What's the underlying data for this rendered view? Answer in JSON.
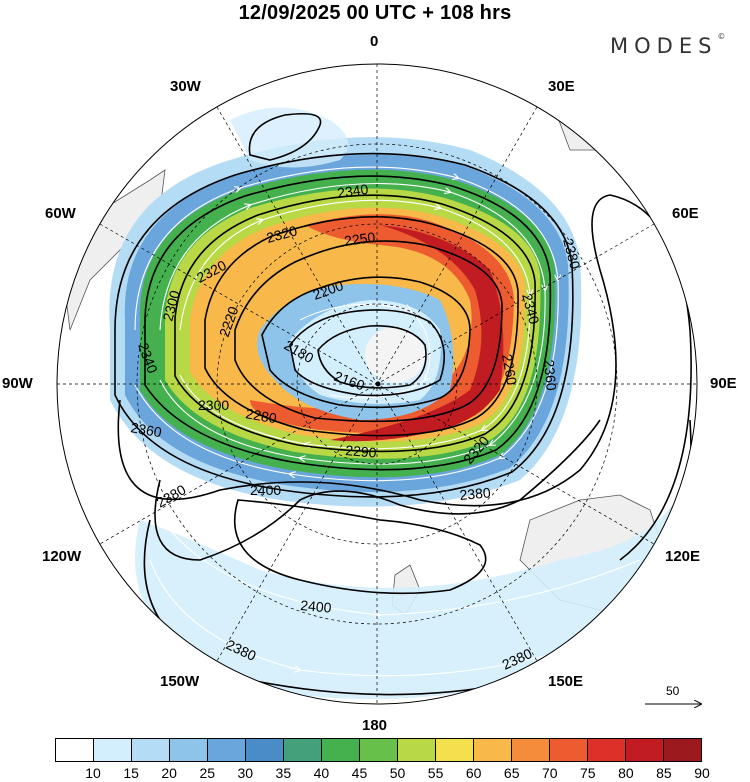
{
  "header": {
    "title": "12/09/2025  00 UTC  + 108 hrs",
    "brand": "MODES",
    "brand_mark": "©"
  },
  "longitude_labels": {
    "n0": "0",
    "e30": "30E",
    "e60": "60E",
    "e90": "90E",
    "e120": "120E",
    "e150": "150E",
    "s180": "180",
    "w150": "150W",
    "w120": "120W",
    "w90": "90W",
    "w60": "60W",
    "w30": "30W"
  },
  "contour_labels": {
    "c2340_top": "2340",
    "c2320_a": "2320",
    "c2250": "2250",
    "c2320_b": "2320",
    "c2200": "2200",
    "c2380_ne": "2380",
    "c2340_e": "2340",
    "c2300_w": "2300",
    "c2220": "2220",
    "c2180": "2180",
    "c2160": "2160",
    "c2340_w": "2340",
    "c2260": "2260",
    "c2360_e": "2360",
    "c2300_sw": "2300",
    "c2280": "2280",
    "c2290": "2290",
    "c2320_s": "2320",
    "c2360_w": "2360",
    "c2380_s": "2380",
    "c2400_a": "2400",
    "c2380_w": "2380",
    "c2400_b": "2400",
    "c2380_sw": "2380",
    "c2380_se": "2380"
  },
  "vector_scale": {
    "value": "50"
  },
  "colorbar": {
    "colors": [
      "#ffffff",
      "#d3eefc",
      "#b4dcf4",
      "#8ec4ea",
      "#6aa6dc",
      "#4a8cc8",
      "#43a07a",
      "#44b04e",
      "#66c04a",
      "#b8d846",
      "#f4e04c",
      "#f8b84a",
      "#f48c3c",
      "#ec5c30",
      "#dc3028",
      "#c01c22",
      "#9c1a1e"
    ],
    "ticks": [
      "10",
      "15",
      "20",
      "25",
      "30",
      "35",
      "40",
      "45",
      "50",
      "55",
      "60",
      "65",
      "70",
      "75",
      "80",
      "85",
      "90"
    ]
  }
}
